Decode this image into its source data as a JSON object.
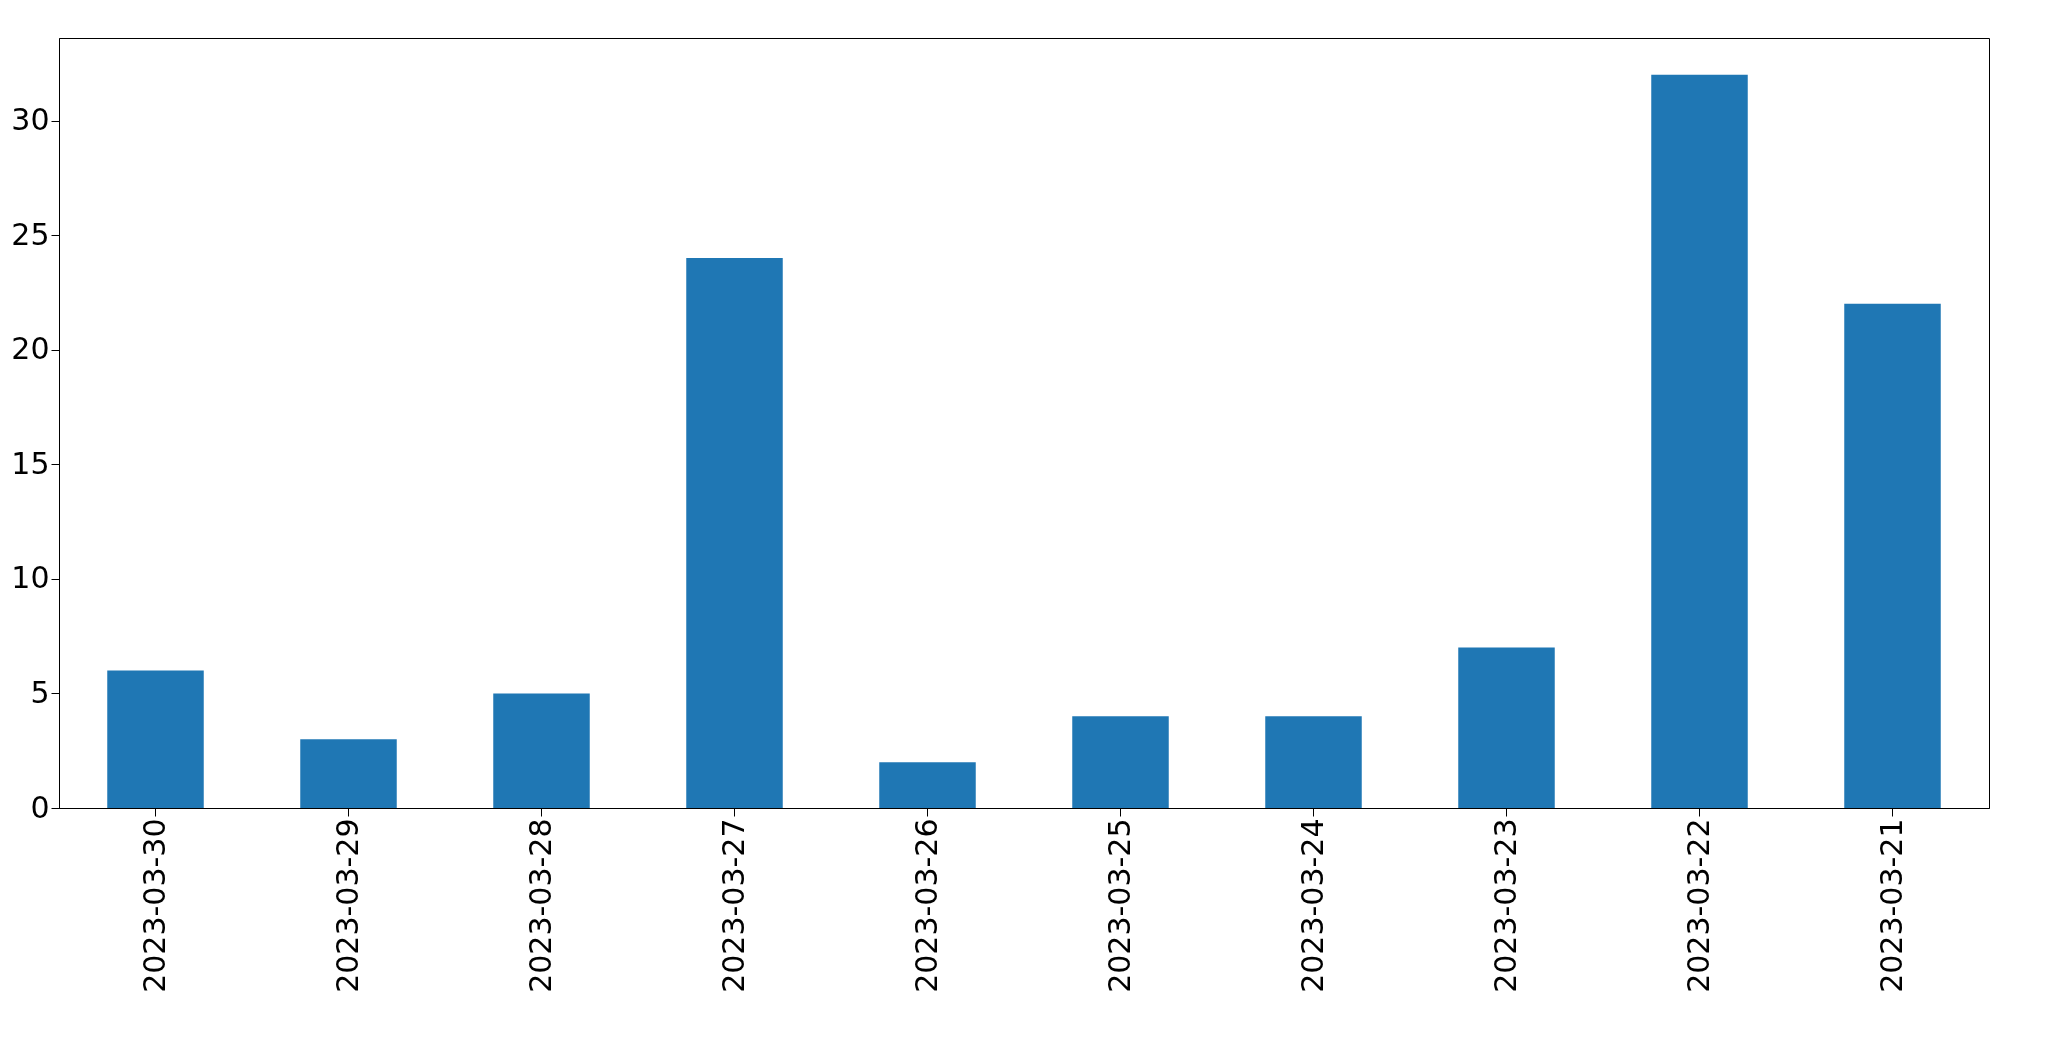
{
  "chart_data": {
    "type": "bar",
    "categories": [
      "2023-03-30",
      "2023-03-29",
      "2023-03-28",
      "2023-03-27",
      "2023-03-26",
      "2023-03-25",
      "2023-03-24",
      "2023-03-23",
      "2023-03-22",
      "2023-03-21"
    ],
    "values": [
      6,
      3,
      5,
      24,
      2,
      4,
      4,
      7,
      32,
      22
    ],
    "color": "#1f77b4",
    "ylim": [
      0,
      33.6
    ],
    "yticks": [
      0,
      5,
      10,
      15,
      20,
      25,
      30
    ],
    "grid": false
  }
}
